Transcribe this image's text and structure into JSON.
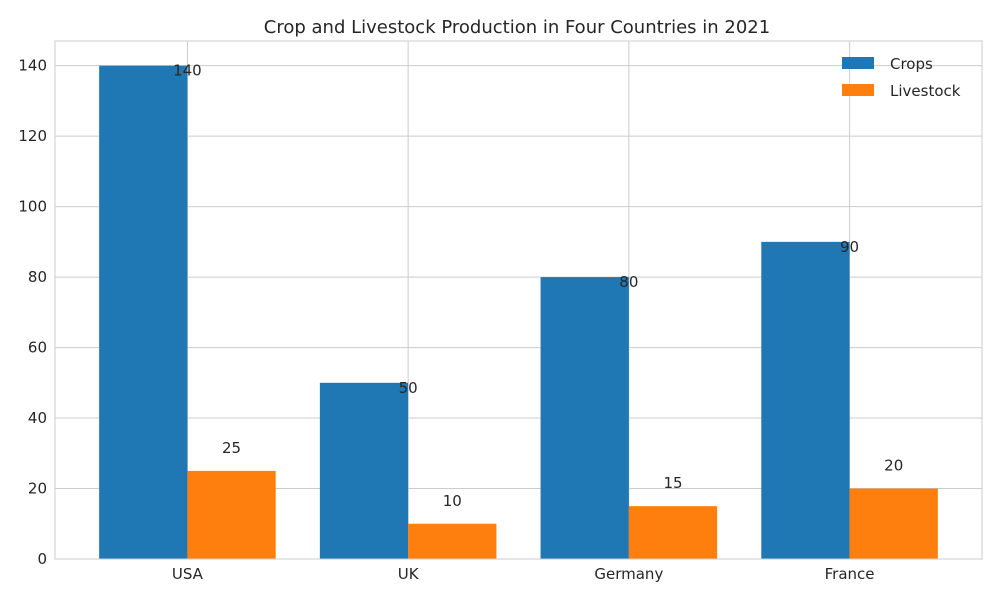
{
  "chart_data": {
    "type": "bar",
    "title": "Crop and Livestock Production in Four Countries in 2021",
    "xlabel": "",
    "ylabel": "",
    "categories": [
      "USA",
      "UK",
      "Germany",
      "France"
    ],
    "series": [
      {
        "name": "Crops",
        "values": [
          140,
          50,
          80,
          90
        ],
        "color": "#1f77b4"
      },
      {
        "name": "Livestock",
        "values": [
          25,
          10,
          15,
          20
        ],
        "color": "#ff7f0e"
      }
    ],
    "ylim": [
      0,
      147
    ],
    "yticks": [
      0,
      20,
      40,
      60,
      80,
      100,
      120,
      140
    ],
    "grid": true,
    "legend_position": "top-right"
  }
}
